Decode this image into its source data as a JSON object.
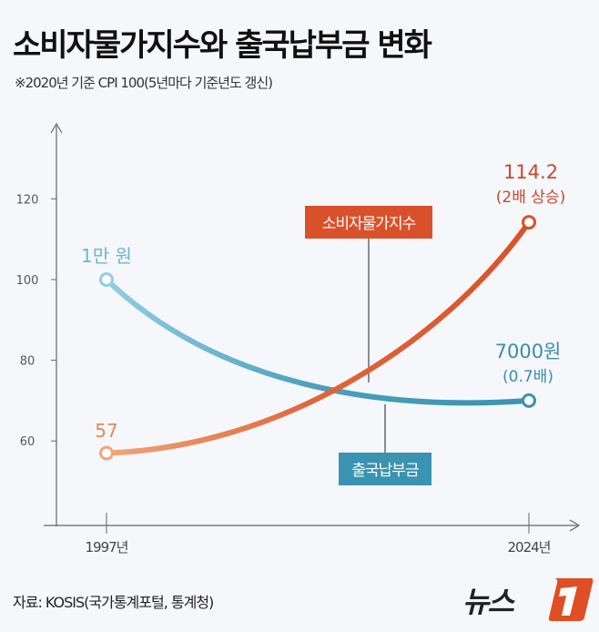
{
  "title": "소비자물가지수와 출국납부금 변화",
  "subtitle": "※2020년 기준 CPI 100(5년마다 기준년도 갱신)",
  "source": "자료: KOSIS(국가통계포털, 통계청)",
  "logo": "뉴스1",
  "chart_data": {
    "type": "line",
    "x": [
      "1997년",
      "2024년"
    ],
    "y_ticks": [
      60,
      80,
      100,
      120
    ],
    "ylim": [
      52,
      140
    ],
    "grid": false,
    "series": [
      {
        "name": "소비자물가지수",
        "values": [
          57,
          114.2
        ],
        "color": "#d9512b",
        "start_color": "#f0a57a",
        "start_label": "57",
        "end_label": "114.2",
        "end_note": "(2배 상승)"
      },
      {
        "name": "출국납부금",
        "values": [
          100,
          70
        ],
        "color": "#3a93b0",
        "start_color": "#92cde3",
        "start_label": "1만 원",
        "end_label": "7000원",
        "end_note": "(0.7배)"
      }
    ]
  }
}
